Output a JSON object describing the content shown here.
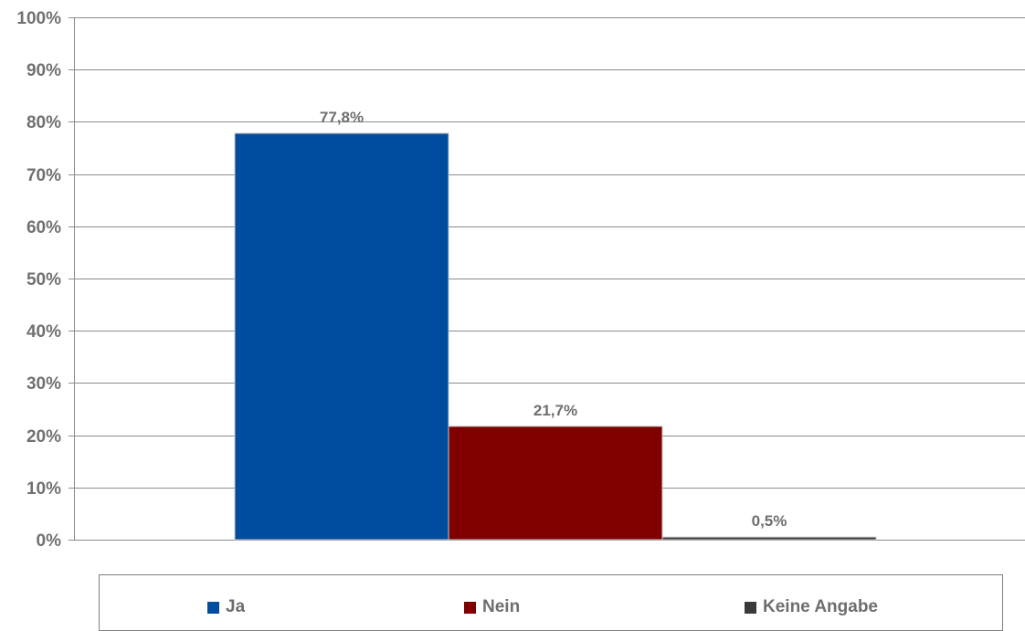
{
  "chart_data": {
    "type": "bar",
    "categories": [
      "Ja",
      "Nein",
      "Keine Angabe"
    ],
    "values": [
      77.8,
      21.7,
      0.5
    ],
    "value_labels": [
      "77,8%",
      "21,7%",
      "0,5%"
    ],
    "colors": [
      "#004C9E",
      "#800000",
      "#3A3A3A"
    ],
    "ylim": [
      0,
      100
    ],
    "yticks": [
      0,
      10,
      20,
      30,
      40,
      50,
      60,
      70,
      80,
      90,
      100
    ],
    "ytick_labels": [
      "0%",
      "10%",
      "20%",
      "30%",
      "40%",
      "50%",
      "60%",
      "70%",
      "80%",
      "90%",
      "100%"
    ],
    "grid": true,
    "legend_position": "bottom",
    "title": "",
    "xlabel": "",
    "ylabel": ""
  },
  "legend": {
    "items": [
      {
        "label": "Ja",
        "color": "#004C9E"
      },
      {
        "label": "Nein",
        "color": "#800000"
      },
      {
        "label": "Keine Angabe",
        "color": "#3A3A3A"
      }
    ]
  }
}
